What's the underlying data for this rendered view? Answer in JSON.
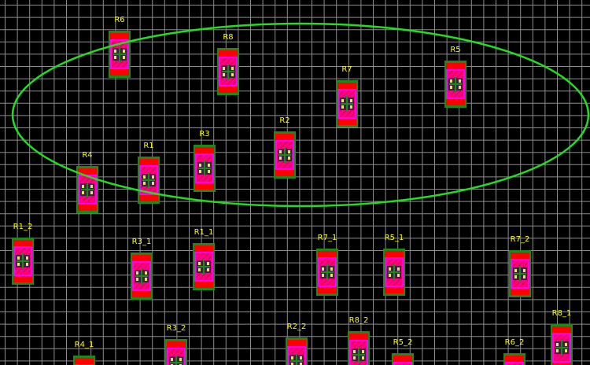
{
  "view": "pcb-layout-editor",
  "colors": {
    "background": "#000000",
    "grid": "#8c8c8c",
    "selection_ellipse": "#22dd22",
    "designator": "#ffff00",
    "pad_top": "#ff0000",
    "body": "#ff00ff",
    "hatch": "#ff0080",
    "outline": "#1a8a1a",
    "pin": "#e8e070"
  },
  "components": [
    {
      "designator": "R6"
    },
    {
      "designator": "R8"
    },
    {
      "designator": "R7"
    },
    {
      "designator": "R5"
    },
    {
      "designator": "R2"
    },
    {
      "designator": "R3"
    },
    {
      "designator": "R1"
    },
    {
      "designator": "R4"
    },
    {
      "designator": "R1_2"
    },
    {
      "designator": "R3_1"
    },
    {
      "designator": "R1_1"
    },
    {
      "designator": "R7_1"
    },
    {
      "designator": "R5_1"
    },
    {
      "designator": "R7_2"
    },
    {
      "designator": "R3_2"
    },
    {
      "designator": "R2_2"
    },
    {
      "designator": "R8_2"
    },
    {
      "designator": "R5_2"
    },
    {
      "designator": "R6_2"
    },
    {
      "designator": "R8_1"
    },
    {
      "designator": "R4_1"
    }
  ]
}
